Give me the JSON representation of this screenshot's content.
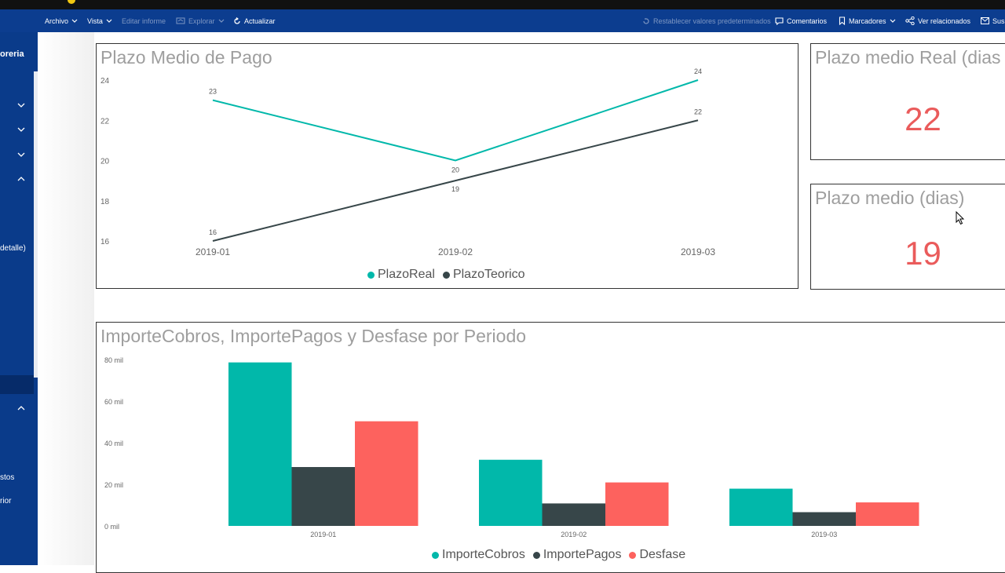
{
  "toolbar": {
    "file": "Archivo",
    "view": "Vista",
    "edit_report": "Editar informe",
    "explore": "Explorar",
    "refresh": "Actualizar",
    "reset_defaults": "Restablecer valores predeterminados",
    "comments": "Comentarios",
    "bookmarks": "Marcadores",
    "see_related": "Ver relacionados",
    "subscribe": "Sus"
  },
  "sidebar": {
    "title_fragment": "oreria",
    "item_detalle": "detalle)",
    "item_stos": "stos",
    "item_rior": "rior"
  },
  "colors": {
    "teal": "#01b8aa",
    "dark": "#374649",
    "red": "#fd625e",
    "kpi": "#ea5b5b",
    "toolbar": "#0c3d8f"
  },
  "cards": {
    "real_title": "Plazo medio Real (dias",
    "real_value": "22",
    "avg_title": "Plazo medio (dias)",
    "avg_value": "19"
  },
  "line_chart": {
    "title": "Plazo Medio de Pago",
    "legend": [
      "PlazoReal",
      "PlazoTeorico"
    ]
  },
  "bar_chart": {
    "title": "ImporteCobros, ImportePagos y Desfase por Periodo",
    "legend": [
      "ImporteCobros",
      "ImportePagos",
      "Desfase"
    ]
  },
  "chart_data": [
    {
      "type": "line",
      "title": "Plazo Medio de Pago",
      "categories": [
        "2019-01",
        "2019-02",
        "2019-03"
      ],
      "y_ticks": [
        "24",
        "22",
        "20",
        "18",
        "16"
      ],
      "ylim": [
        16,
        24
      ],
      "legend_position": "bottom-center",
      "series": [
        {
          "name": "PlazoReal",
          "values": [
            23,
            20,
            24
          ],
          "color": "#01b8aa"
        },
        {
          "name": "PlazoTeorico",
          "values": [
            16,
            19,
            22
          ],
          "color": "#374649"
        }
      ]
    },
    {
      "type": "bar",
      "title": "ImporteCobros, ImportePagos y Desfase por Periodo",
      "categories": [
        "2019-01",
        "2019-02",
        "2019-03"
      ],
      "y_ticks": [
        "80 mil",
        "60 mil",
        "40 mil",
        "20 mil",
        "0 mil"
      ],
      "ylim": [
        0,
        80000
      ],
      "legend_position": "bottom-center",
      "series": [
        {
          "name": "ImporteCobros",
          "values": [
            78600,
            31800,
            17900
          ],
          "color": "#01b8aa"
        },
        {
          "name": "ImportePagos",
          "values": [
            28300,
            10800,
            6600
          ],
          "color": "#374649"
        },
        {
          "name": "Desfase",
          "values": [
            50300,
            20900,
            11300
          ],
          "color": "#fd625e"
        }
      ]
    }
  ]
}
